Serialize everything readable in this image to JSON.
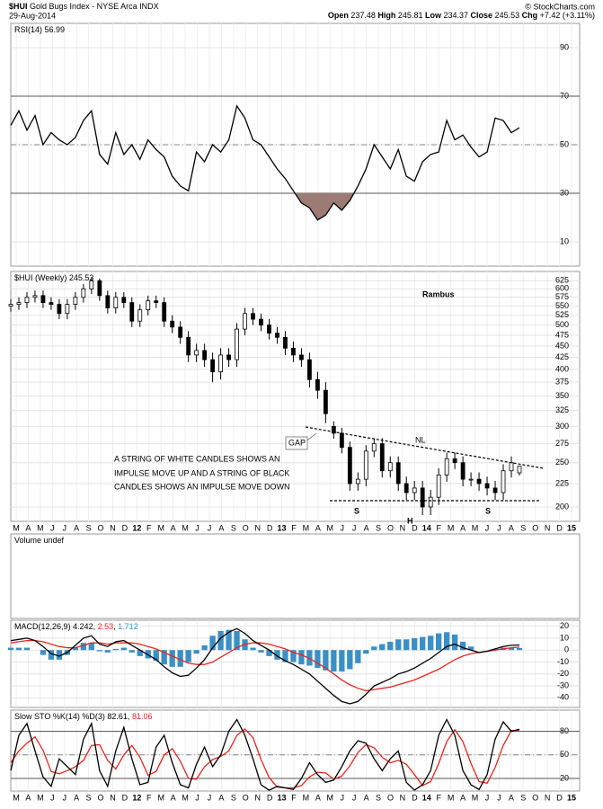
{
  "header": {
    "symbol": "$HUI",
    "name": "Gold Bugs Index - NYSE Arca INDX",
    "date": "29-Aug-2014",
    "copyright": "© StockCharts.com",
    "open_label": "Open",
    "high_label": "High",
    "low_label": "Low",
    "close_label": "Close",
    "change_label": "Chg",
    "change": "+7.42 (+3.11%)"
  },
  "chart_data": [
    {
      "type": "rsi",
      "title": "RSI(14)",
      "ylim": [
        0,
        100
      ],
      "yticks": [
        10,
        30,
        50,
        70,
        90
      ],
      "grid": true,
      "bands": [
        30,
        70
      ],
      "midline": 50,
      "fill_color": "#9c7b74",
      "series": [
        {
          "color": "#000000",
          "values": [
            58,
            64,
            56,
            62,
            50,
            55,
            52,
            50,
            53,
            60,
            64,
            46,
            42,
            55,
            46,
            50,
            44,
            52,
            48,
            45,
            37,
            33,
            31,
            47,
            43,
            50,
            47,
            52,
            66,
            61,
            52,
            50,
            45,
            40,
            36,
            31,
            26,
            24,
            19,
            21,
            26,
            23,
            27,
            33,
            40,
            50,
            45,
            40,
            48,
            37,
            35,
            43,
            46,
            47,
            60,
            52,
            54,
            49,
            45,
            47,
            61,
            60,
            55,
            56.99
          ]
        }
      ]
    },
    {
      "type": "candlestick",
      "title": "$HUI (Weekly)",
      "log_scale": true,
      "ylim": [
        186,
        655
      ],
      "grid": true,
      "yticks": [
        200,
        225,
        250,
        275,
        300,
        325,
        350,
        375,
        400,
        425,
        450,
        475,
        500,
        525,
        550,
        575,
        600,
        625
      ],
      "open": [
        550,
        555,
        560,
        575,
        580,
        560,
        555,
        530,
        555,
        575,
        600,
        625,
        580,
        545,
        575,
        560,
        510,
        540,
        565,
        560,
        510,
        495,
        470,
        430,
        440,
        420,
        395,
        430,
        420,
        490,
        530,
        515,
        500,
        480,
        470,
        445,
        430,
        420,
        380,
        360,
        300,
        290,
        270,
        225,
        230,
        265,
        275,
        240,
        250,
        225,
        215,
        220,
        200,
        210,
        235,
        255,
        250,
        230,
        230,
        225,
        220,
        215,
        240,
        237.48
      ],
      "high": [
        570,
        575,
        590,
        595,
        595,
        575,
        570,
        570,
        590,
        615,
        635,
        632,
        595,
        590,
        590,
        575,
        555,
        580,
        580,
        575,
        525,
        510,
        485,
        455,
        455,
        435,
        445,
        445,
        505,
        545,
        545,
        530,
        515,
        495,
        485,
        460,
        445,
        435,
        395,
        375,
        308,
        298,
        278,
        238,
        273,
        283,
        283,
        258,
        258,
        233,
        228,
        228,
        218,
        243,
        263,
        263,
        258,
        238,
        238,
        233,
        228,
        248,
        258,
        245.81
      ],
      "low": [
        535,
        540,
        545,
        560,
        545,
        540,
        515,
        515,
        540,
        560,
        585,
        565,
        530,
        530,
        545,
        495,
        495,
        525,
        545,
        495,
        480,
        455,
        415,
        415,
        405,
        375,
        380,
        405,
        405,
        475,
        500,
        485,
        465,
        455,
        430,
        415,
        405,
        365,
        345,
        305,
        282,
        262,
        217,
        217,
        222,
        257,
        232,
        232,
        217,
        207,
        207,
        192,
        192,
        202,
        227,
        242,
        222,
        222,
        217,
        212,
        207,
        207,
        232,
        234.37
      ],
      "close": [
        555,
        560,
        575,
        580,
        560,
        555,
        530,
        555,
        575,
        600,
        625,
        580,
        545,
        575,
        560,
        510,
        540,
        565,
        560,
        510,
        495,
        470,
        430,
        440,
        420,
        395,
        430,
        420,
        490,
        530,
        515,
        500,
        480,
        470,
        445,
        430,
        420,
        380,
        360,
        320,
        290,
        270,
        225,
        230,
        265,
        275,
        240,
        250,
        225,
        215,
        220,
        200,
        210,
        235,
        255,
        250,
        230,
        230,
        225,
        220,
        215,
        240,
        250,
        245.53
      ],
      "x_labels": [
        "M",
        "A",
        "M",
        "J",
        "J",
        "A",
        "S",
        "O",
        "N",
        "D",
        "12",
        "F",
        "M",
        "A",
        "M",
        "J",
        "J",
        "A",
        "S",
        "O",
        "N",
        "D",
        "13",
        "F",
        "M",
        "A",
        "M",
        "J",
        "J",
        "A",
        "S",
        "O",
        "N",
        "D",
        "14",
        "F",
        "M",
        "A",
        "M",
        "J",
        "J",
        "A",
        "S",
        "O",
        "N",
        "D",
        "15"
      ],
      "annotations": [
        "Rambus",
        "A STRING OF WHITE CANDLES SHOWS AN",
        "IMPULSE MOVE UP AND A STRING OF BLACK",
        "CANDLES SHOWS AN IMPULSE MOVE DOWN",
        "GAP",
        "NL",
        "S",
        "H",
        "S"
      ]
    },
    {
      "type": "volume",
      "title": "Volume undef"
    },
    {
      "type": "macd",
      "title": "MACD(12,26,9)",
      "ylim": [
        -48,
        25
      ],
      "yticks": [
        -40,
        -30,
        -20,
        -10,
        0,
        10,
        20
      ],
      "grid": true,
      "series": [
        {
          "color": "#000000",
          "values": [
            8,
            9,
            10,
            8,
            3,
            -3,
            -5,
            -2,
            4,
            10,
            12,
            5,
            3,
            7,
            8,
            4,
            0,
            -4,
            -8,
            -14,
            -19,
            -22,
            -21,
            -15,
            -8,
            2,
            10,
            15,
            18,
            14,
            8,
            4,
            0,
            -5,
            -9,
            -12,
            -16,
            -20,
            -26,
            -32,
            -38,
            -43,
            -45,
            -43,
            -37,
            -30,
            -27,
            -24,
            -20,
            -18,
            -15,
            -11,
            -7,
            -2,
            3,
            5,
            2,
            0,
            -2,
            -1,
            1,
            3,
            4,
            4.242
          ]
        },
        {
          "color": "#e8251f",
          "values": [
            6,
            7,
            8,
            8,
            7,
            5,
            3,
            2,
            2,
            4,
            6,
            6,
            5,
            6,
            6,
            6,
            5,
            3,
            1,
            -2,
            -5,
            -8,
            -11,
            -12,
            -12,
            -10,
            -6,
            -2,
            2,
            5,
            6,
            6,
            5,
            3,
            1,
            -2,
            -4,
            -7,
            -11,
            -15,
            -20,
            -25,
            -29,
            -32,
            -34,
            -33,
            -32,
            -31,
            -29,
            -27,
            -25,
            -22,
            -19,
            -16,
            -12,
            -8,
            -5,
            -3,
            -2,
            -1,
            0,
            1,
            2,
            2.53
          ]
        },
        {
          "color": "#3a8fc4",
          "values": [
            2,
            2,
            2,
            0,
            -4,
            -8,
            -8,
            -4,
            2,
            6,
            6,
            -1,
            -2,
            1,
            2,
            -2,
            -5,
            -7,
            -9,
            -12,
            -14,
            -14,
            -10,
            -3,
            4,
            12,
            16,
            17,
            16,
            9,
            2,
            -2,
            -5,
            -8,
            -10,
            -10,
            -12,
            -13,
            -15,
            -17,
            -18,
            -18,
            -16,
            -11,
            -3,
            3,
            5,
            7,
            9,
            9,
            10,
            11,
            12,
            14,
            15,
            13,
            7,
            3,
            0,
            0,
            1,
            2,
            2,
            1.712
          ]
        }
      ]
    },
    {
      "type": "stochastic",
      "title": "Slow STO %K(14) %D(3)",
      "ylim": [
        4,
        107
      ],
      "yticks": [
        20,
        50,
        80
      ],
      "grid": true,
      "bands": [
        20,
        80
      ],
      "midline": 50,
      "series": [
        {
          "color": "#000000",
          "values": [
            30,
            75,
            90,
            55,
            22,
            10,
            45,
            35,
            25,
            70,
            90,
            30,
            10,
            55,
            85,
            45,
            12,
            15,
            60,
            75,
            40,
            12,
            8,
            38,
            60,
            35,
            50,
            80,
            95,
            75,
            45,
            12,
            5,
            10,
            8,
            6,
            20,
            40,
            25,
            15,
            18,
            35,
            55,
            68,
            65,
            45,
            30,
            45,
            55,
            15,
            5,
            12,
            30,
            75,
            95,
            75,
            30,
            12,
            6,
            25,
            70,
            92,
            80,
            82.61
          ]
        },
        {
          "color": "#e8251f",
          "values": [
            40,
            55,
            65,
            73,
            56,
            29,
            26,
            30,
            35,
            43,
            62,
            63,
            43,
            32,
            50,
            62,
            47,
            24,
            29,
            50,
            58,
            42,
            20,
            19,
            35,
            44,
            48,
            55,
            75,
            83,
            72,
            44,
            21,
            9,
            8,
            8,
            11,
            22,
            28,
            27,
            19,
            23,
            36,
            53,
            63,
            59,
            47,
            40,
            43,
            38,
            25,
            11,
            16,
            39,
            67,
            82,
            67,
            39,
            16,
            14,
            34,
            62,
            81,
            81.06
          ]
        }
      ],
      "x_labels": [
        "M",
        "A",
        "M",
        "J",
        "J",
        "A",
        "S",
        "O",
        "N",
        "D",
        "12",
        "F",
        "M",
        "A",
        "M",
        "J",
        "J",
        "A",
        "S",
        "O",
        "N",
        "D",
        "13",
        "F",
        "M",
        "A",
        "M",
        "J",
        "J",
        "A",
        "S",
        "O",
        "N",
        "D",
        "14",
        "F",
        "M",
        "A",
        "M",
        "J",
        "J",
        "A",
        "S",
        "O",
        "N",
        "D",
        "15"
      ]
    }
  ]
}
